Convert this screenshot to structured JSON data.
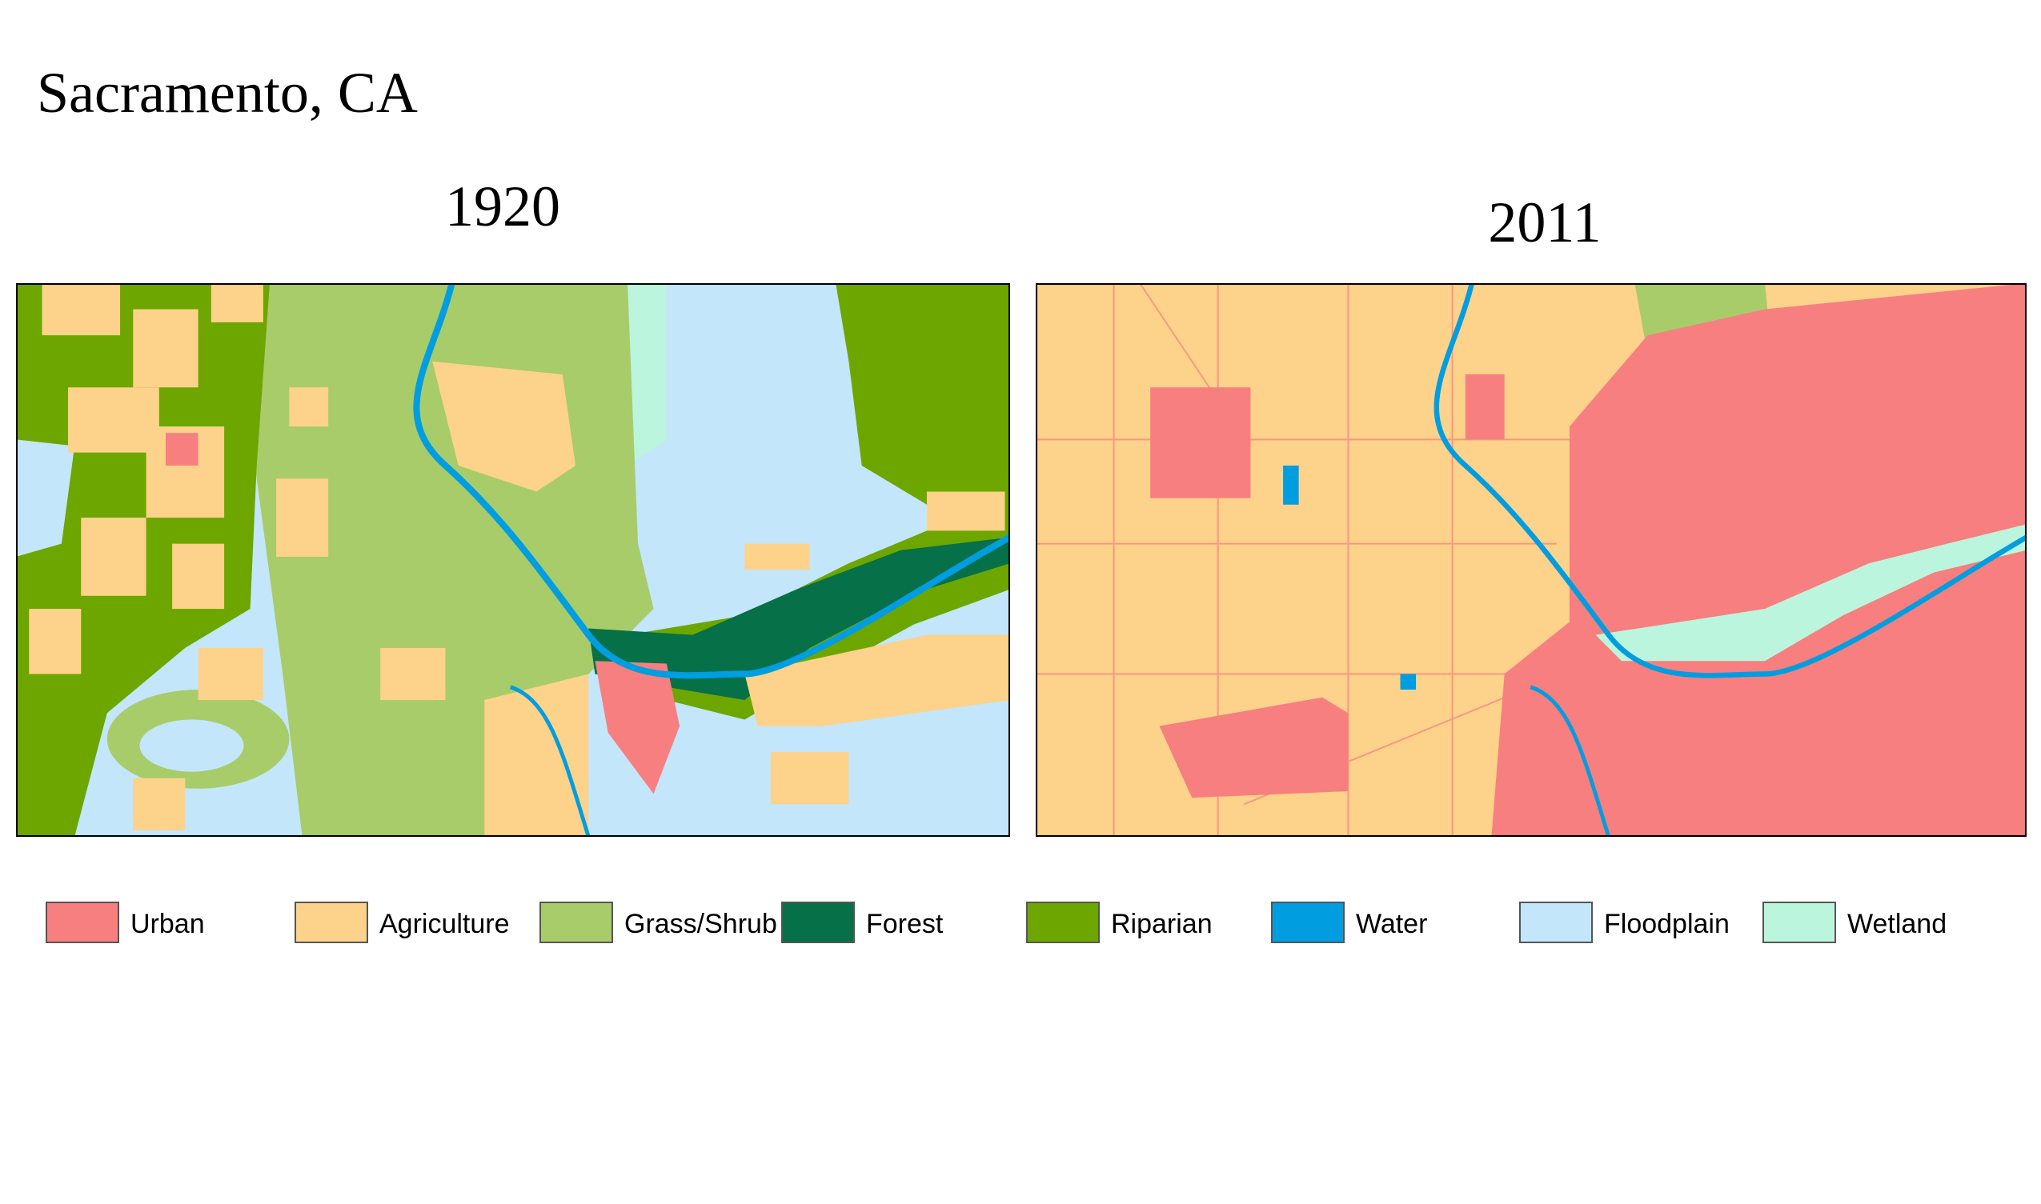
{
  "title": "Sacramento, CA",
  "maps": [
    {
      "label": "1920"
    },
    {
      "label": "2011"
    }
  ],
  "legend": [
    {
      "name": "Urban",
      "color": "#f77f7f"
    },
    {
      "name": "Agriculture",
      "color": "#fdd28a"
    },
    {
      "name": "Grass/Shrub",
      "color": "#a8cc6a"
    },
    {
      "name": "Forest",
      "color": "#067048"
    },
    {
      "name": "Riparian",
      "color": "#6ea600"
    },
    {
      "name": "Water",
      "color": "#009ee0"
    },
    {
      "name": "Floodplain",
      "color": "#c3e6fb"
    },
    {
      "name": "Wetland",
      "color": "#bcf5dd"
    }
  ]
}
